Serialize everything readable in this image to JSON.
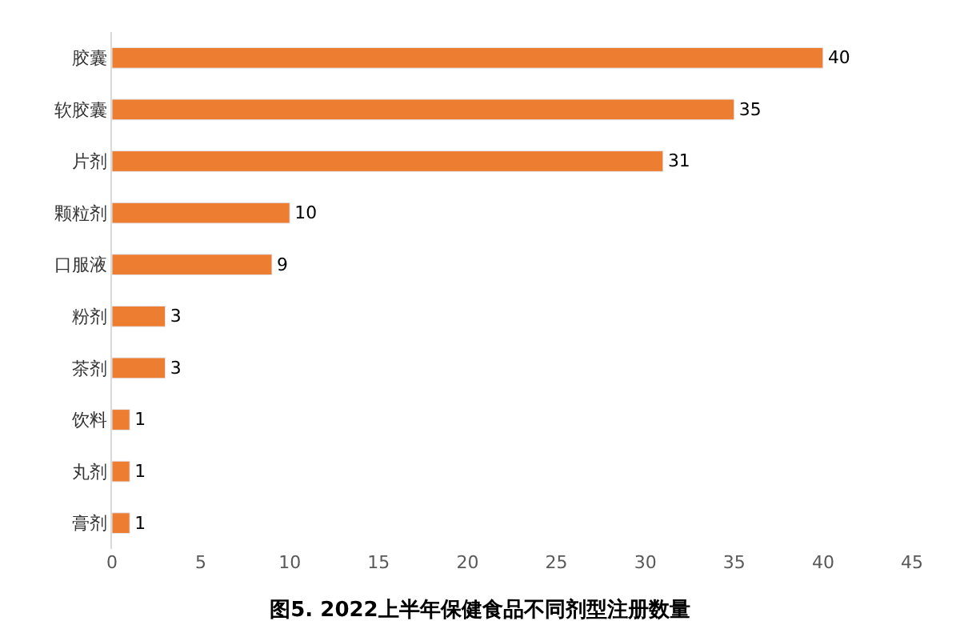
{
  "chart_data": {
    "type": "bar",
    "orientation": "horizontal",
    "title": "图5. 2022上半年保健食品不同剂型注册数量",
    "categories": [
      "胶囊",
      "软胶囊",
      "片剂",
      "颗粒剂",
      "口服液",
      "粉剂",
      "茶剂",
      "饮料",
      "丸剂",
      "膏剂"
    ],
    "values": [
      40,
      35,
      31,
      10,
      9,
      3,
      3,
      1,
      1,
      1
    ],
    "color": "#ed7d31",
    "xlim": [
      0,
      45
    ],
    "xticks": [
      0,
      5,
      10,
      15,
      20,
      25,
      30,
      35,
      40,
      45
    ],
    "data_labels": true
  }
}
